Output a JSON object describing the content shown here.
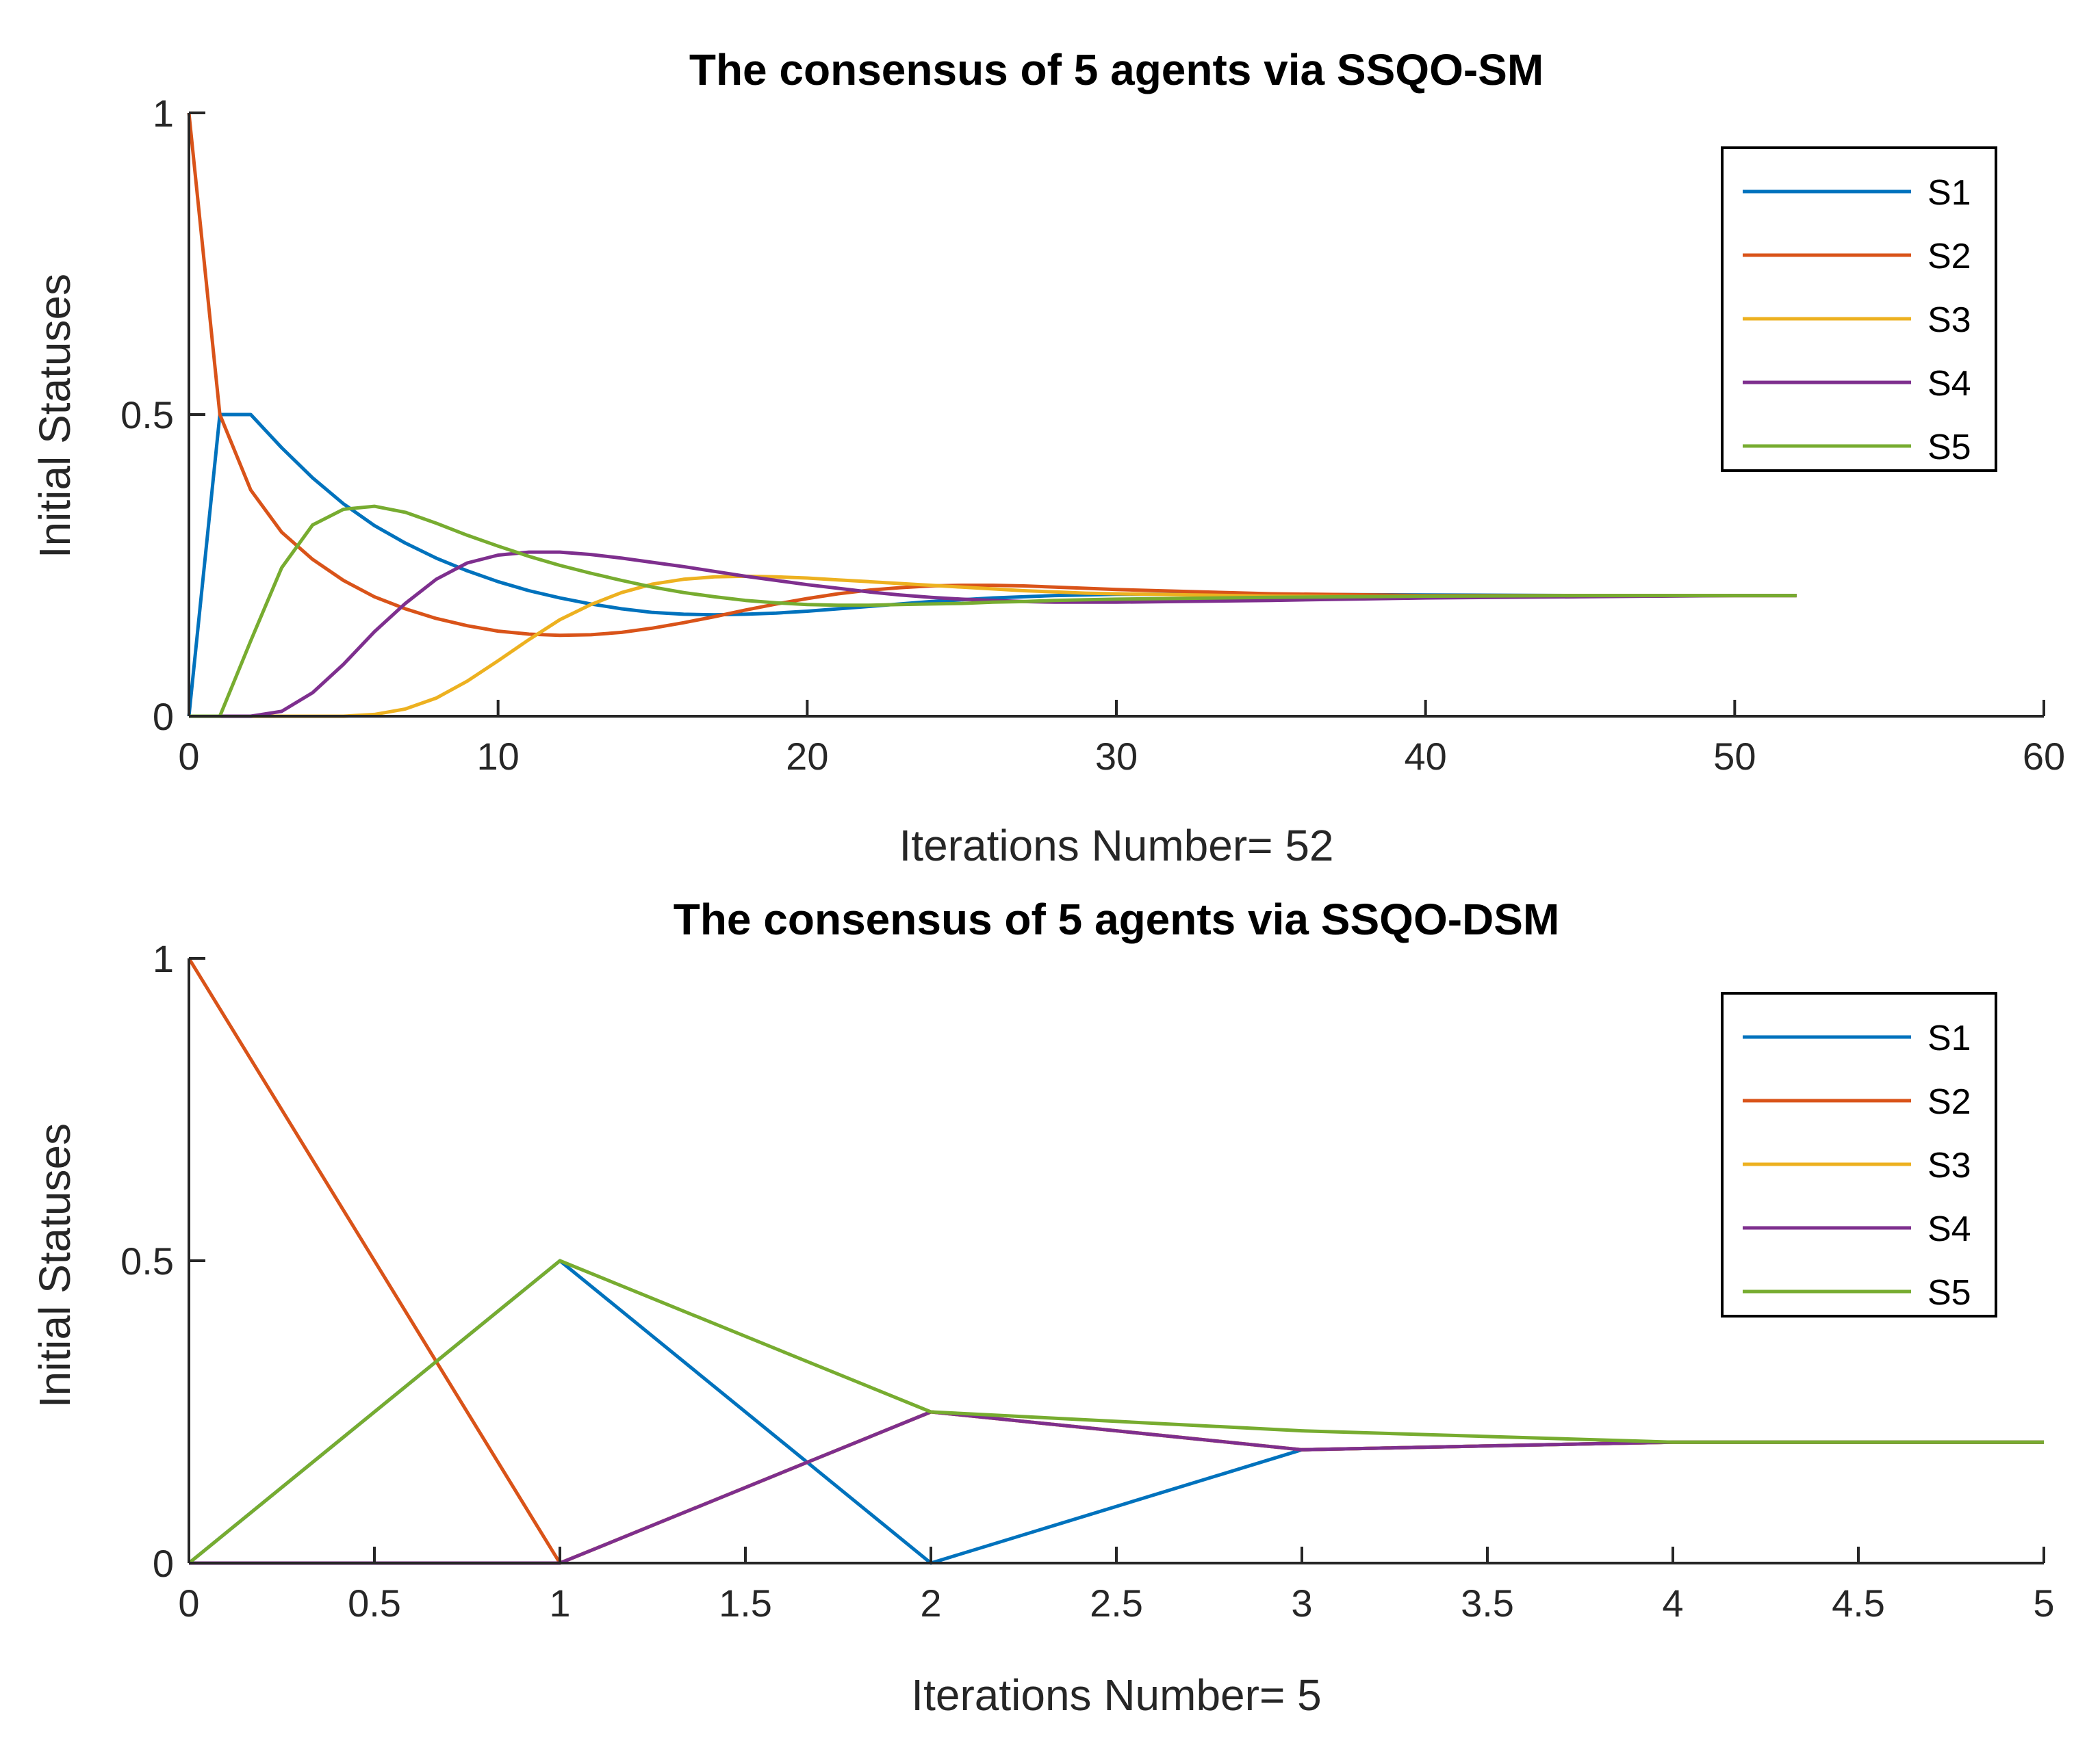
{
  "chart_data": [
    {
      "type": "line",
      "title": "The consensus of 5 agents via SSQO-SM",
      "xlabel": "Iterations Number= 52",
      "ylabel": "Initial Statuses",
      "xlim": [
        0,
        60
      ],
      "ylim": [
        0,
        1
      ],
      "xticks": [
        "0",
        "10",
        "20",
        "30",
        "40",
        "50",
        "60"
      ],
      "yticks": [
        "0",
        "0.5",
        "1"
      ],
      "legend_position": "top-right",
      "series": [
        {
          "name": "S1",
          "color": "#0072BD",
          "x": [
            0,
            1,
            2,
            3,
            4,
            5,
            6,
            7,
            8,
            9,
            10,
            11,
            12,
            13,
            14,
            15,
            16,
            17,
            18,
            19,
            20,
            21,
            22,
            23,
            24,
            25,
            26,
            27,
            28,
            29,
            30,
            35,
            40,
            45,
            50,
            52
          ],
          "y": [
            0,
            0.5,
            0.5,
            0.445,
            0.395,
            0.352,
            0.316,
            0.287,
            0.262,
            0.241,
            0.223,
            0.208,
            0.196,
            0.186,
            0.178,
            0.172,
            0.169,
            0.168,
            0.169,
            0.171,
            0.174,
            0.178,
            0.182,
            0.186,
            0.19,
            0.193,
            0.196,
            0.198,
            0.2,
            0.201,
            0.202,
            0.202,
            0.201,
            0.2,
            0.2,
            0.2
          ]
        },
        {
          "name": "S2",
          "color": "#D95319",
          "x": [
            0,
            1,
            2,
            3,
            4,
            5,
            6,
            7,
            8,
            9,
            10,
            11,
            12,
            13,
            14,
            15,
            16,
            17,
            18,
            19,
            20,
            21,
            22,
            23,
            24,
            25,
            26,
            27,
            28,
            29,
            30,
            35,
            40,
            45,
            50,
            52
          ],
          "y": [
            1,
            0.5,
            0.375,
            0.305,
            0.26,
            0.225,
            0.198,
            0.178,
            0.162,
            0.15,
            0.141,
            0.136,
            0.134,
            0.135,
            0.139,
            0.146,
            0.155,
            0.165,
            0.176,
            0.186,
            0.195,
            0.203,
            0.209,
            0.213,
            0.216,
            0.217,
            0.217,
            0.216,
            0.214,
            0.212,
            0.21,
            0.203,
            0.2,
            0.2,
            0.2,
            0.2
          ]
        },
        {
          "name": "S3",
          "color": "#EDB120",
          "x": [
            0,
            1,
            2,
            3,
            4,
            5,
            6,
            7,
            8,
            9,
            10,
            11,
            12,
            13,
            14,
            15,
            16,
            17,
            18,
            19,
            20,
            21,
            22,
            23,
            24,
            25,
            26,
            27,
            28,
            29,
            30,
            35,
            40,
            45,
            50,
            52
          ],
          "y": [
            0,
            0,
            0,
            0,
            0,
            0,
            0.003,
            0.012,
            0.03,
            0.058,
            0.092,
            0.127,
            0.16,
            0.185,
            0.205,
            0.219,
            0.227,
            0.231,
            0.232,
            0.231,
            0.229,
            0.226,
            0.223,
            0.22,
            0.217,
            0.214,
            0.211,
            0.208,
            0.206,
            0.204,
            0.203,
            0.199,
            0.198,
            0.199,
            0.2,
            0.2
          ]
        },
        {
          "name": "S4",
          "color": "#7E2F8E",
          "x": [
            0,
            1,
            2,
            3,
            4,
            5,
            6,
            7,
            8,
            9,
            10,
            11,
            12,
            13,
            14,
            15,
            16,
            17,
            18,
            19,
            20,
            21,
            22,
            23,
            24,
            25,
            26,
            27,
            28,
            29,
            30,
            35,
            40,
            45,
            50,
            52
          ],
          "y": [
            0,
            0,
            0,
            0.008,
            0.039,
            0.086,
            0.14,
            0.187,
            0.227,
            0.254,
            0.267,
            0.272,
            0.272,
            0.268,
            0.262,
            0.255,
            0.248,
            0.24,
            0.232,
            0.225,
            0.218,
            0.212,
            0.206,
            0.201,
            0.197,
            0.194,
            0.192,
            0.19,
            0.189,
            0.189,
            0.189,
            0.192,
            0.196,
            0.198,
            0.2,
            0.2
          ]
        },
        {
          "name": "S5",
          "color": "#77AC30",
          "x": [
            0,
            1,
            2,
            3,
            4,
            5,
            6,
            7,
            8,
            9,
            10,
            11,
            12,
            13,
            14,
            15,
            16,
            17,
            18,
            19,
            20,
            21,
            22,
            23,
            24,
            25,
            26,
            27,
            28,
            29,
            30,
            35,
            40,
            45,
            50,
            52
          ],
          "y": [
            0,
            0,
            0.125,
            0.246,
            0.317,
            0.343,
            0.348,
            0.338,
            0.32,
            0.3,
            0.282,
            0.265,
            0.25,
            0.237,
            0.225,
            0.214,
            0.205,
            0.198,
            0.192,
            0.188,
            0.185,
            0.184,
            0.184,
            0.185,
            0.186,
            0.187,
            0.189,
            0.19,
            0.192,
            0.193,
            0.194,
            0.197,
            0.199,
            0.2,
            0.2,
            0.2
          ]
        }
      ]
    },
    {
      "type": "line",
      "title": "The consensus of 5 agents via SSQO-DSM",
      "xlabel": "Iterations Number= 5",
      "ylabel": "Initial Statuses",
      "xlim": [
        0,
        5
      ],
      "ylim": [
        0,
        1
      ],
      "xticks": [
        "0",
        "0.5",
        "1",
        "1.5",
        "2",
        "2.5",
        "3",
        "3.5",
        "4",
        "4.5",
        "5"
      ],
      "yticks": [
        "0",
        "0.5",
        "1"
      ],
      "legend_position": "top-right",
      "series": [
        {
          "name": "S1",
          "color": "#0072BD",
          "x": [
            0,
            1,
            2,
            3,
            4,
            5
          ],
          "y": [
            0,
            0.5,
            0,
            0.1875,
            0.2,
            0.2
          ]
        },
        {
          "name": "S2",
          "color": "#D95319",
          "x": [
            0,
            1,
            2,
            3,
            4,
            5
          ],
          "y": [
            1,
            0,
            0.25,
            0.1875,
            0.2,
            0.2
          ]
        },
        {
          "name": "S3",
          "color": "#EDB120",
          "x": [
            0,
            1,
            2,
            3,
            4,
            5
          ],
          "y": [
            0,
            0,
            0.25,
            0.1875,
            0.2,
            0.2
          ]
        },
        {
          "name": "S4",
          "color": "#7E2F8E",
          "x": [
            0,
            1,
            2,
            3,
            4,
            5
          ],
          "y": [
            0,
            0,
            0.25,
            0.1875,
            0.2,
            0.2
          ]
        },
        {
          "name": "S5",
          "color": "#77AC30",
          "x": [
            0,
            1,
            2,
            3,
            4,
            5
          ],
          "y": [
            0,
            0.5,
            0.25,
            0.2188,
            0.2,
            0.2
          ]
        }
      ]
    }
  ]
}
